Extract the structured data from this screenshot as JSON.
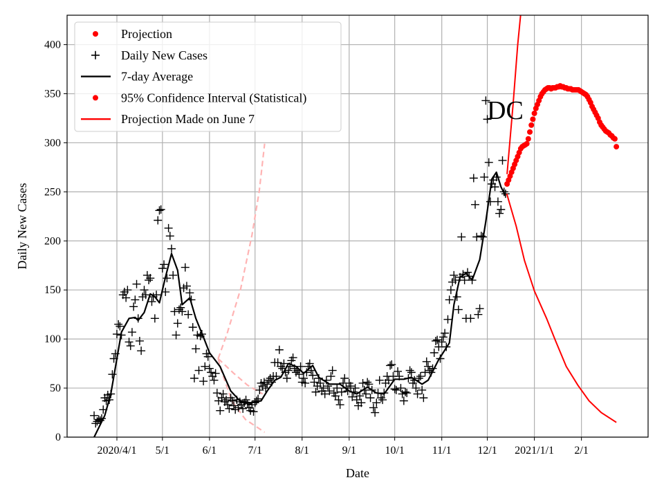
{
  "chart_data": {
    "type": "line",
    "title": "DC",
    "xlabel": "Date",
    "ylabel": "Daily New Cases",
    "x_unit": "days since 2020-04-01",
    "xlim": [
      -32.8,
      349.9
    ],
    "ylim": [
      0,
      430
    ],
    "grid": true,
    "legend_position": "top-left",
    "x_ticks": [
      {
        "day": 0,
        "label": "2020/4/1"
      },
      {
        "day": 30,
        "label": "5/1"
      },
      {
        "day": 61,
        "label": "6/1"
      },
      {
        "day": 91,
        "label": "7/1"
      },
      {
        "day": 122,
        "label": "8/1"
      },
      {
        "day": 153,
        "label": "9/1"
      },
      {
        "day": 183,
        "label": "10/1"
      },
      {
        "day": 214,
        "label": "11/1"
      },
      {
        "day": 244,
        "label": "12/1"
      },
      {
        "day": 275,
        "label": "2021/1/1"
      },
      {
        "day": 306,
        "label": "2/1"
      }
    ],
    "y_ticks": [
      0,
      50,
      100,
      150,
      200,
      250,
      300,
      350,
      400
    ],
    "legend": [
      {
        "label": "Projection",
        "marker": "dot",
        "color": "#ff0000"
      },
      {
        "label": "Daily New Cases",
        "marker": "plus",
        "color": "#000000"
      },
      {
        "label": "7-day Average",
        "marker": "line",
        "color": "#000000"
      },
      {
        "label": "95% Confidence Interval (Statistical)",
        "marker": "dot",
        "color": "#ff0000"
      },
      {
        "label": "Projection Made on June 7",
        "marker": "line",
        "color": "#ff0000"
      }
    ],
    "daily_new_cases": {
      "start_day": -15,
      "values": [
        22,
        14,
        16,
        18,
        17,
        19,
        28,
        40,
        37,
        43,
        38,
        44,
        64,
        80,
        85,
        105,
        115,
        113,
        104,
        145,
        148,
        142,
        150,
        97,
        93,
        107,
        133,
        140,
        156,
        121,
        98,
        88,
        143,
        150,
        145,
        165,
        160,
        162,
        138,
        143,
        121,
        145,
        221,
        231,
        232,
        172,
        176,
        148,
        162,
        213,
        205,
        192,
        165,
        128,
        104,
        116,
        130,
        132,
        128,
        152,
        173,
        154,
        125,
        147,
        140,
        112,
        60,
        90,
        104,
        68,
        103,
        105,
        57,
        72,
        85,
        82,
        70,
        66,
        62,
        58,
        65,
        45,
        37,
        27,
        40,
        44,
        36,
        38,
        33,
        29,
        40,
        37,
        32,
        28,
        38,
        30,
        36,
        33,
        29,
        35,
        38,
        34,
        30,
        27,
        33,
        26,
        35,
        37,
        39,
        48,
        55,
        52,
        56,
        50,
        54,
        58,
        60,
        56,
        62,
        76,
        62,
        76,
        89,
        72,
        70,
        75,
        66,
        60,
        68,
        72,
        78,
        81,
        70,
        66,
        68,
        64,
        72,
        56,
        60,
        55,
        66,
        72,
        75,
        68,
        63,
        56,
        46,
        52,
        60,
        55,
        47,
        50,
        44,
        58,
        52,
        47,
        62,
        68,
        45,
        42,
        50,
        38,
        33,
        46,
        55,
        60,
        50,
        47,
        55,
        52,
        41,
        46,
        50,
        38,
        32,
        42,
        35,
        55,
        48,
        44,
        56,
        54,
        40,
        48,
        30,
        25,
        35,
        45,
        58,
        40,
        38,
        45,
        55,
        62,
        58,
        73,
        74,
        62,
        49,
        48,
        67,
        62,
        50,
        44,
        37,
        46,
        45,
        60,
        68,
        66,
        55,
        58,
        50,
        44,
        60,
        62,
        48,
        40,
        66,
        77,
        72,
        68,
        66,
        70,
        86,
        98,
        99,
        92,
        80,
        97,
        102,
        106,
        92,
        120,
        140,
        150,
        158,
        165,
        160,
        143,
        130,
        163,
        204,
        166,
        160,
        121,
        168,
        164,
        121,
        160,
        264,
        237,
        204,
        125,
        131,
        205,
        204,
        265,
        343,
        324,
        280,
        240,
        258,
        262,
        255,
        265,
        240,
        228,
        232,
        282,
        250,
        248
      ]
    },
    "seven_day_average": [
      [
        -15,
        0
      ],
      [
        -8,
        22
      ],
      [
        -4,
        44
      ],
      [
        3,
        107
      ],
      [
        8,
        121
      ],
      [
        12,
        122
      ],
      [
        14,
        119
      ],
      [
        18,
        127
      ],
      [
        22,
        146
      ],
      [
        25,
        143
      ],
      [
        28,
        137
      ],
      [
        32,
        163
      ],
      [
        36,
        187
      ],
      [
        40,
        170
      ],
      [
        43,
        135
      ],
      [
        48,
        142
      ],
      [
        52,
        121
      ],
      [
        57,
        102
      ],
      [
        61,
        86
      ],
      [
        68,
        72
      ],
      [
        75,
        47
      ],
      [
        81,
        37
      ],
      [
        88,
        35
      ],
      [
        95,
        37
      ],
      [
        99,
        47
      ],
      [
        104,
        58
      ],
      [
        108,
        61
      ],
      [
        113,
        75
      ],
      [
        118,
        72
      ],
      [
        123,
        65
      ],
      [
        129,
        73
      ],
      [
        133,
        61
      ],
      [
        140,
        54
      ],
      [
        147,
        54
      ],
      [
        153,
        47
      ],
      [
        158,
        44
      ],
      [
        165,
        51
      ],
      [
        171,
        45
      ],
      [
        176,
        44
      ],
      [
        183,
        59
      ],
      [
        189,
        59
      ],
      [
        194,
        61
      ],
      [
        201,
        54
      ],
      [
        205,
        58
      ],
      [
        212,
        79
      ],
      [
        219,
        96
      ],
      [
        222,
        135
      ],
      [
        226,
        163
      ],
      [
        230,
        167
      ],
      [
        234,
        160
      ],
      [
        239,
        181
      ],
      [
        243,
        220
      ],
      [
        247,
        263
      ],
      [
        250,
        270
      ],
      [
        253,
        255
      ],
      [
        256,
        246
      ]
    ],
    "projection": [
      [
        257,
        258
      ],
      [
        258,
        262
      ],
      [
        259,
        266
      ],
      [
        260,
        270
      ],
      [
        261,
        274
      ],
      [
        262,
        278
      ],
      [
        263,
        282
      ],
      [
        264,
        286
      ],
      [
        265,
        290
      ],
      [
        266,
        294
      ],
      [
        267,
        296
      ],
      [
        268,
        297
      ],
      [
        269,
        298
      ],
      [
        270,
        299
      ],
      [
        271,
        304
      ],
      [
        272,
        311
      ],
      [
        273,
        318
      ],
      [
        274,
        324
      ],
      [
        275,
        330
      ],
      [
        276,
        335
      ],
      [
        277,
        339
      ],
      [
        278,
        343
      ],
      [
        279,
        347
      ],
      [
        280,
        350
      ],
      [
        281,
        352
      ],
      [
        282,
        354
      ],
      [
        283,
        355
      ],
      [
        284,
        356
      ],
      [
        285,
        356
      ],
      [
        286,
        355
      ],
      [
        287,
        356
      ],
      [
        288,
        356
      ],
      [
        289,
        356
      ],
      [
        290,
        357
      ],
      [
        291,
        357
      ],
      [
        292,
        358
      ],
      [
        293,
        357
      ],
      [
        294,
        357
      ],
      [
        295,
        356
      ],
      [
        296,
        356
      ],
      [
        297,
        355
      ],
      [
        298,
        355
      ],
      [
        299,
        355
      ],
      [
        300,
        354
      ],
      [
        301,
        354
      ],
      [
        302,
        354
      ],
      [
        303,
        354
      ],
      [
        304,
        354
      ],
      [
        305,
        353
      ],
      [
        306,
        352
      ],
      [
        307,
        351
      ],
      [
        308,
        350
      ],
      [
        309,
        349
      ],
      [
        310,
        347
      ],
      [
        311,
        344
      ],
      [
        312,
        341
      ],
      [
        313,
        337
      ],
      [
        314,
        334
      ],
      [
        315,
        331
      ],
      [
        316,
        328
      ],
      [
        317,
        325
      ],
      [
        318,
        321
      ],
      [
        319,
        318
      ],
      [
        320,
        316
      ],
      [
        321,
        314
      ],
      [
        322,
        312
      ],
      [
        323,
        311
      ],
      [
        324,
        310
      ],
      [
        325,
        308
      ],
      [
        326,
        307
      ],
      [
        327,
        305
      ],
      [
        328,
        304
      ],
      [
        329,
        296
      ]
    ],
    "ci_upper": [
      [
        257,
        268
      ],
      [
        261,
        340
      ],
      [
        264,
        400
      ],
      [
        266,
        431
      ]
    ],
    "ci_lower": [
      [
        256.8,
        248
      ],
      [
        263,
        215
      ],
      [
        268.5,
        180
      ],
      [
        275,
        149
      ],
      [
        283,
        121
      ],
      [
        289,
        98
      ],
      [
        296,
        72
      ],
      [
        303.6,
        53
      ],
      [
        311,
        37
      ],
      [
        319,
        25
      ],
      [
        329,
        15
      ]
    ],
    "june7_projection_dashed": {
      "color": "#ffb3b3",
      "upper": [
        [
          66.7,
          80
        ],
        [
          72.5,
          105
        ],
        [
          81.5,
          151
        ],
        [
          89,
          206
        ],
        [
          93.7,
          250
        ],
        [
          97.3,
          299
        ]
      ],
      "middle": [
        [
          66.7,
          80
        ],
        [
          77,
          65
        ],
        [
          86,
          53
        ],
        [
          96,
          44
        ]
      ],
      "lower": [
        [
          66.7,
          80
        ],
        [
          69.4,
          65
        ],
        [
          75.7,
          37
        ],
        [
          84.7,
          18
        ],
        [
          97.3,
          5
        ]
      ]
    }
  }
}
